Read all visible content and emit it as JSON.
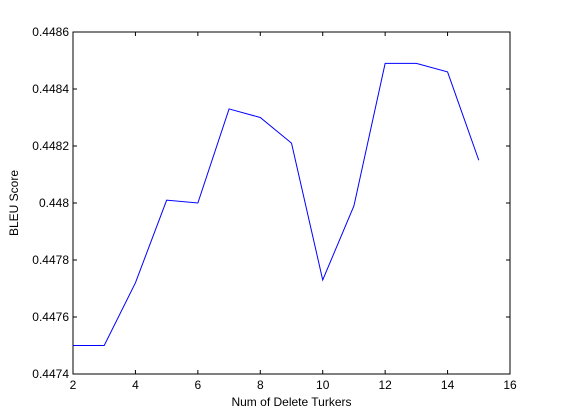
{
  "chart_data": {
    "type": "line",
    "title": "",
    "xlabel": "Num of Delete Turkers",
    "ylabel": "BLEU Score",
    "xlim": [
      2,
      16
    ],
    "ylim": [
      0.4474,
      0.4486
    ],
    "x_ticks": [
      2,
      4,
      6,
      8,
      10,
      12,
      14,
      16
    ],
    "x_tick_labels": [
      "2",
      "4",
      "6",
      "8",
      "10",
      "12",
      "14",
      "16"
    ],
    "y_ticks": [
      0.4474,
      0.4476,
      0.4478,
      0.448,
      0.4482,
      0.4484,
      0.4486
    ],
    "y_tick_labels": [
      "0.4474",
      "0.4476",
      "0.4478",
      "0.448",
      "0.4482",
      "0.4484",
      "0.4486"
    ],
    "grid": false,
    "legend": "none",
    "series": [
      {
        "color": "#0000ff",
        "x": [
          2,
          3,
          4,
          5,
          6,
          7,
          8,
          9,
          10,
          11,
          12,
          13,
          14,
          15
        ],
        "y": [
          0.4475,
          0.4475,
          0.44772,
          0.44801,
          0.448,
          0.44833,
          0.4483,
          0.44821,
          0.44773,
          0.44799,
          0.44849,
          0.44849,
          0.44846,
          0.44815
        ]
      }
    ]
  }
}
